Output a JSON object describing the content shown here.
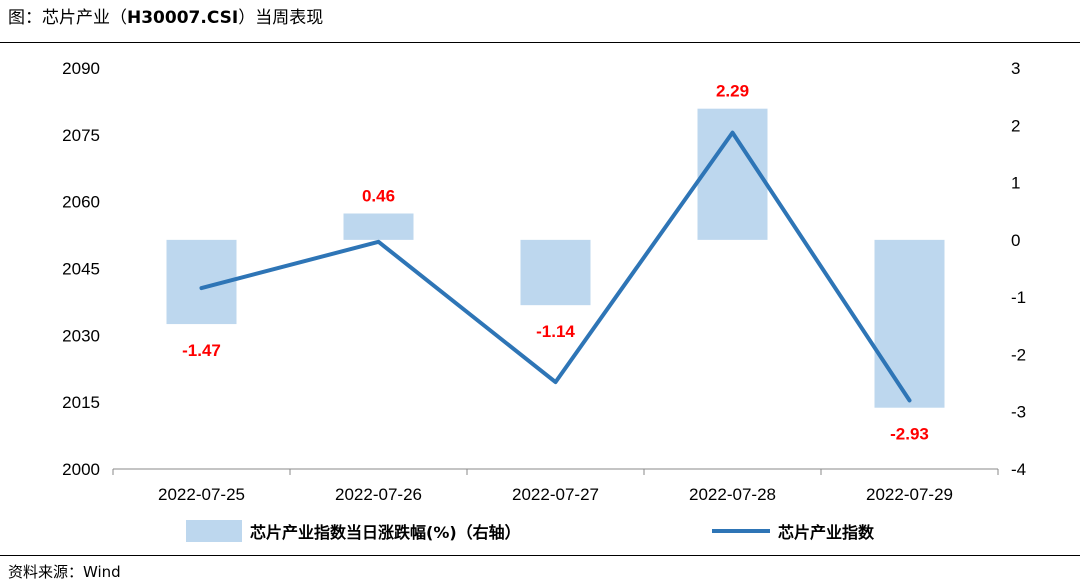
{
  "header": {
    "prefix": "图：芯片产业（",
    "code": "H30007.CSI",
    "suffix": "）当周表现"
  },
  "footer": {
    "source": "资料来源：Wind"
  },
  "colors": {
    "bar": "#bdd7ee",
    "line": "#2e75b6",
    "data_label": "#ff0000"
  },
  "chart_data": {
    "type": "bar+line",
    "title": "芯片产业（H30007.CSI）当周表现",
    "categories": [
      "2022-07-25",
      "2022-07-26",
      "2022-07-27",
      "2022-07-28",
      "2022-07-29"
    ],
    "series": [
      {
        "name": "芯片产业指数当日涨跌幅(%)（右轴）",
        "type": "bar",
        "axis": "right",
        "values": [
          -1.47,
          0.46,
          -1.14,
          2.29,
          -2.93
        ],
        "data_labels": [
          "-1.47",
          "0.46",
          "-1.14",
          "2.29",
          "-2.93"
        ]
      },
      {
        "name": "芯片产业指数",
        "type": "line",
        "axis": "left",
        "values": [
          2040.6,
          2051.0,
          2019.5,
          2075.5,
          2015.4
        ]
      }
    ],
    "y_left": {
      "min": 2000,
      "max": 2090,
      "ticks": [
        "2000",
        "2015",
        "2030",
        "2045",
        "2060",
        "2075",
        "2090"
      ]
    },
    "y_right": {
      "min": -4,
      "max": 3,
      "ticks": [
        "-4",
        "-3",
        "-2",
        "-1",
        "0",
        "1",
        "2",
        "3"
      ]
    },
    "legend": {
      "position": "bottom",
      "items": [
        "芯片产业指数当日涨跌幅(%)（右轴）",
        "芯片产业指数"
      ]
    },
    "grid": false
  }
}
